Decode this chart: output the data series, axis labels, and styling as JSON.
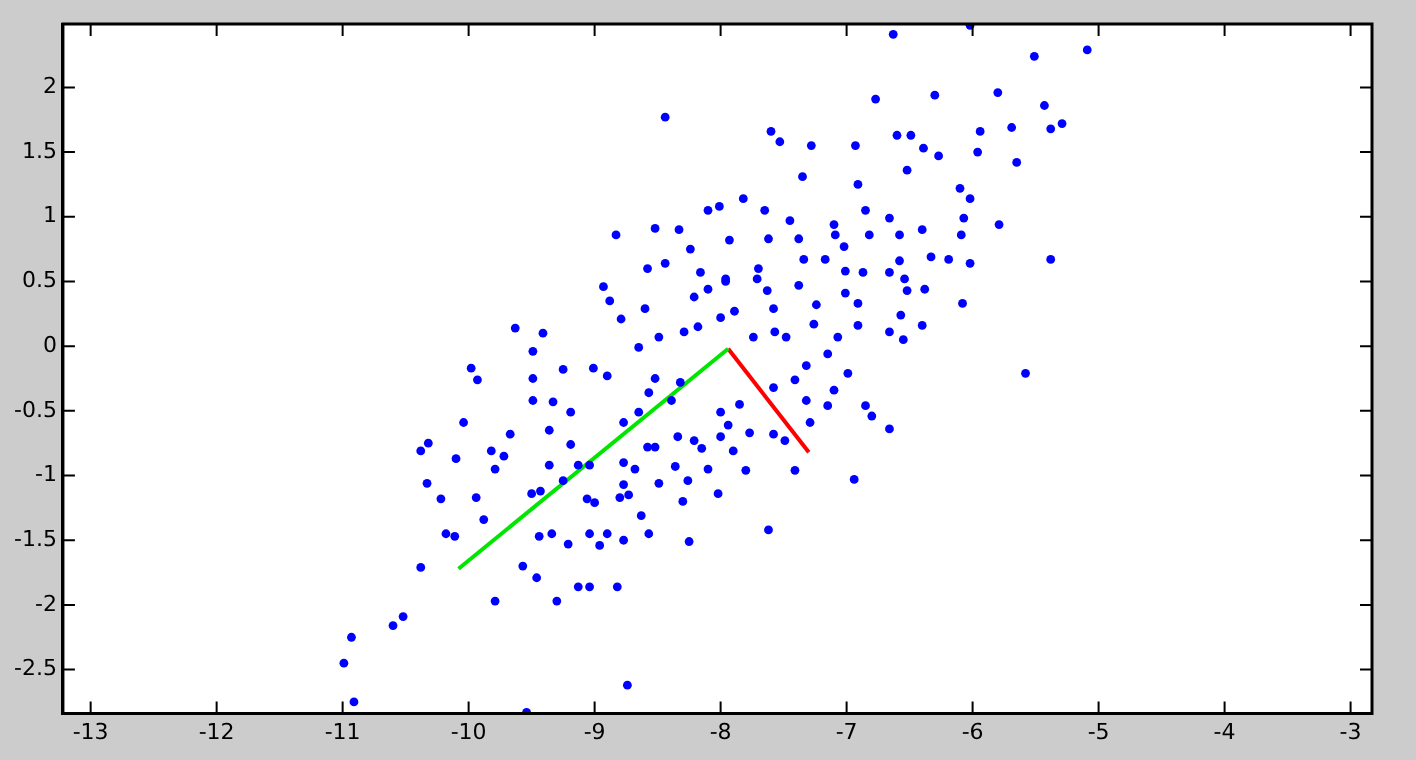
{
  "chart_data": {
    "type": "scatter",
    "xlim": [
      -13.22,
      -2.83
    ],
    "ylim": [
      -2.84,
      2.49
    ],
    "xticks": [
      -13,
      -12,
      -11,
      -10,
      -9,
      -8,
      -7,
      -6,
      -5,
      -4,
      -3
    ],
    "yticks": [
      -2.5,
      -2,
      -1.5,
      -1,
      -0.5,
      0,
      0.5,
      1,
      1.5,
      2
    ],
    "grid": false,
    "legend": false,
    "series": [
      {
        "color": "#0000ff",
        "marker": "circle",
        "x": [
          -8.44,
          -8.83,
          -8.52,
          -8.33,
          -8.1,
          -8.01,
          -8.58,
          -8.44,
          -8.93,
          -8.88,
          -8.79,
          -9.63,
          -9.41,
          -9.49,
          -8.6,
          -8.24,
          -8.16,
          -7.96,
          -8.21,
          -8.29,
          -8.65,
          -8.49,
          -9.98,
          -6.63,
          -6.02,
          -5.51,
          -5.09,
          -6.77,
          -6.3,
          -5.8,
          -5.43,
          -5.38,
          -5.29,
          -7.6,
          -7.53,
          -7.28,
          -6.93,
          -6.6,
          -6.49,
          -6.39,
          -5.94,
          -5.96,
          -5.69,
          -5.65,
          -6.27,
          -7.35,
          -6.91,
          -6.52,
          -6.1,
          -6.02,
          -7.82,
          -7.65,
          -7.45,
          -7.1,
          -6.85,
          -6.66,
          -6.07,
          -5.79,
          -7.93,
          -7.62,
          -7.38,
          -7.09,
          -6.82,
          -6.58,
          -6.4,
          -6.09,
          -7.02,
          -5.38,
          -6.19,
          -6.33,
          -6.02,
          -6.58,
          -7.34,
          -7.17,
          -7.7,
          -7.01,
          -6.87,
          -6.66,
          -6.54,
          -7.96,
          -7.71,
          -7.38,
          -8.1,
          -7.63,
          -7.01,
          -6.52,
          -6.38,
          -6.08,
          -7.58,
          -7.24,
          -6.91,
          -6.57,
          -7.89,
          -8.0,
          -8.18,
          -6.4,
          -6.91,
          -7.26,
          -6.66,
          -7.57,
          -6.55,
          -7.07,
          -7.48,
          -7.74,
          -7.15,
          -7.32,
          -6.99,
          -5.58,
          -7.41,
          -7.1,
          -7.15,
          -6.85,
          -6.8,
          -6.66,
          -6.94,
          -7.62,
          -7.29,
          -7.41,
          -7.49,
          -7.58,
          -7.8,
          -8.02,
          -8.1,
          -8.15,
          -7.9,
          -8.0,
          -7.77,
          -7.32,
          -7.58,
          -7.85,
          -9.93,
          -9.49,
          -9.25,
          -9.01,
          -8.9,
          -10.04,
          -9.67,
          -10.38,
          -10.32,
          -10.1,
          -9.82,
          -9.72,
          -9.49,
          -9.33,
          -9.19,
          -9.36,
          -9.19,
          -9.79,
          -10.33,
          -10.22,
          -9.94,
          -9.36,
          -9.13,
          -9.04,
          -9.5,
          -9.43,
          -9.25,
          -9.06,
          -9.0,
          -10.18,
          -10.11,
          -9.88,
          -9.44,
          -9.34,
          -9.21,
          -9.04,
          -8.96,
          -8.9,
          -10.38,
          -9.57,
          -9.46,
          -9.79,
          -9.3,
          -9.13,
          -9.04,
          -8.82,
          -10.6,
          -10.52,
          -10.93,
          -10.99,
          -10.91,
          -8.74,
          -9.54,
          -8.77,
          -8.65,
          -8.77,
          -8.68,
          -8.77,
          -8.8,
          -8.73,
          -8.63,
          -8.57,
          -8.77,
          -8.49,
          -8.3,
          -8.25,
          -8.26,
          -8.36,
          -8.58,
          -8.52,
          -8.34,
          -8.21,
          -7.94,
          -8.0,
          -8.39,
          -8.57,
          -8.52,
          -8.32
        ],
        "values": [
          1.77,
          0.86,
          0.91,
          0.9,
          1.05,
          1.08,
          0.6,
          0.64,
          0.46,
          0.35,
          0.21,
          0.14,
          0.1,
          -0.04,
          0.29,
          0.75,
          0.57,
          0.52,
          0.38,
          0.11,
          -0.01,
          0.07,
          -0.17,
          2.41,
          2.48,
          2.24,
          2.29,
          1.91,
          1.94,
          1.96,
          1.86,
          1.68,
          1.72,
          1.66,
          1.58,
          1.55,
          1.55,
          1.63,
          1.63,
          1.53,
          1.66,
          1.5,
          1.69,
          1.42,
          1.47,
          1.31,
          1.25,
          1.36,
          1.22,
          1.14,
          1.14,
          1.05,
          0.97,
          0.94,
          1.05,
          0.99,
          0.99,
          0.94,
          0.82,
          0.83,
          0.83,
          0.86,
          0.86,
          0.86,
          0.9,
          0.86,
          0.77,
          0.67,
          0.67,
          0.69,
          0.64,
          0.66,
          0.67,
          0.67,
          0.6,
          0.58,
          0.57,
          0.57,
          0.52,
          0.5,
          0.52,
          0.47,
          0.44,
          0.43,
          0.41,
          0.43,
          0.44,
          0.33,
          0.29,
          0.32,
          0.33,
          0.24,
          0.27,
          0.22,
          0.15,
          0.16,
          0.16,
          0.17,
          0.11,
          0.11,
          0.05,
          0.07,
          0.07,
          0.07,
          -0.06,
          -0.15,
          -0.21,
          -0.21,
          -0.26,
          -0.34,
          -0.46,
          -0.46,
          -0.54,
          -0.64,
          -1.03,
          -1.42,
          -0.59,
          -0.96,
          -0.73,
          -0.68,
          -0.96,
          -1.14,
          -0.95,
          -0.79,
          -0.81,
          -0.7,
          -0.67,
          -0.42,
          -0.32,
          -0.45,
          -0.26,
          -0.25,
          -0.18,
          -0.17,
          -0.23,
          -0.59,
          -0.68,
          -0.81,
          -0.75,
          -0.87,
          -0.81,
          -0.85,
          -0.42,
          -0.43,
          -0.51,
          -0.65,
          -0.76,
          -0.95,
          -1.06,
          -1.18,
          -1.17,
          -0.92,
          -0.92,
          -0.92,
          -1.14,
          -1.12,
          -1.04,
          -1.18,
          -1.21,
          -1.45,
          -1.47,
          -1.34,
          -1.47,
          -1.45,
          -1.53,
          -1.45,
          -1.54,
          -1.45,
          -1.71,
          -1.7,
          -1.79,
          -1.97,
          -1.97,
          -1.86,
          -1.86,
          -1.86,
          -2.16,
          -2.09,
          -2.25,
          -2.45,
          -2.75,
          -2.62,
          -2.83,
          -0.59,
          -0.51,
          -0.9,
          -0.95,
          -1.07,
          -1.17,
          -1.15,
          -1.31,
          -1.45,
          -1.5,
          -1.06,
          -1.2,
          -1.51,
          -1.04,
          -0.93,
          -0.78,
          -0.78,
          -0.7,
          -0.73,
          -0.61,
          -0.51,
          -0.42,
          -0.36,
          -0.25,
          -0.28
        ]
      },
      {
        "type": "line",
        "marker": "none",
        "color": "#00e600",
        "x": [
          -10.08,
          -7.94
        ],
        "values": [
          -1.72,
          -0.02
        ]
      },
      {
        "type": "line",
        "marker": "none",
        "color": "#ff0000",
        "x": [
          -7.94,
          -7.3
        ],
        "values": [
          -0.02,
          -0.82
        ]
      }
    ]
  }
}
